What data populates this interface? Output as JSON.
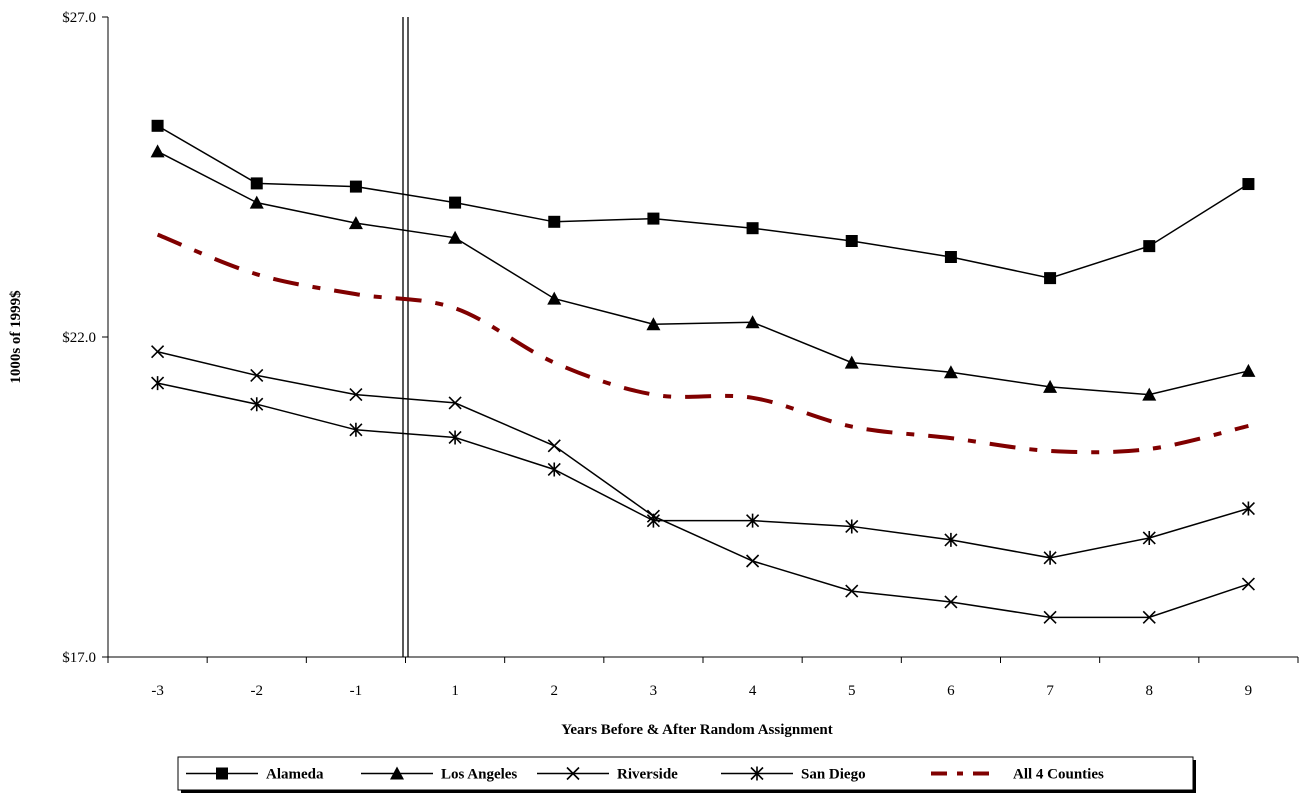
{
  "chart_data": {
    "type": "line",
    "title": "",
    "xlabel": "Years Before & After Random Assignment",
    "ylabel": "1000s of 1999$",
    "categories": [
      "-3",
      "-2",
      "-1",
      "1",
      "2",
      "3",
      "4",
      "5",
      "6",
      "7",
      "8",
      "9"
    ],
    "ylim": [
      17.0,
      27.0
    ],
    "y_ticks": [
      "$17.0",
      "$22.0",
      "$27.0"
    ],
    "y_tick_values": [
      17.0,
      22.0,
      27.0
    ],
    "grid": false,
    "reference_line_between": [
      "-1",
      "1"
    ],
    "legend_position": "bottom",
    "series": [
      {
        "name": "Alameda",
        "marker": "square",
        "color": "#000000",
        "dash": "solid",
        "values": [
          25.3,
          24.4,
          24.35,
          24.1,
          23.8,
          23.85,
          23.7,
          23.5,
          23.25,
          22.92,
          23.42,
          24.39
        ]
      },
      {
        "name": "Los Angeles",
        "marker": "triangle",
        "color": "#000000",
        "dash": "solid",
        "values": [
          24.9,
          24.1,
          23.78,
          23.55,
          22.6,
          22.2,
          22.23,
          21.6,
          21.45,
          21.22,
          21.1,
          21.47
        ]
      },
      {
        "name": "Riverside",
        "marker": "x",
        "color": "#000000",
        "dash": "solid",
        "values": [
          21.77,
          21.4,
          21.1,
          20.97,
          20.3,
          19.2,
          18.5,
          18.03,
          17.86,
          17.62,
          17.62,
          18.14
        ]
      },
      {
        "name": "San Diego",
        "marker": "asterisk",
        "color": "#000000",
        "dash": "solid",
        "values": [
          21.28,
          20.95,
          20.55,
          20.43,
          19.93,
          19.13,
          19.13,
          19.04,
          18.83,
          18.55,
          18.86,
          19.32
        ]
      },
      {
        "name": "All 4 Counties",
        "marker": "none",
        "color": "#800000",
        "dash": "dashdot",
        "values": [
          23.6,
          22.98,
          22.67,
          22.45,
          21.6,
          21.1,
          21.05,
          20.6,
          20.42,
          20.22,
          20.25,
          20.61
        ]
      }
    ]
  }
}
